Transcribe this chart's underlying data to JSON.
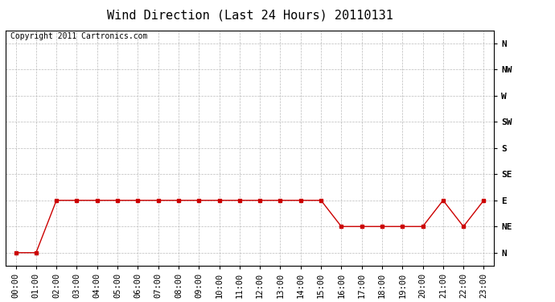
{
  "title": "Wind Direction (Last 24 Hours) 20110131",
  "copyright_text": "Copyright 2011 Cartronics.com",
  "x_labels": [
    "00:00",
    "01:00",
    "02:00",
    "03:00",
    "04:00",
    "05:00",
    "06:00",
    "07:00",
    "08:00",
    "09:00",
    "10:00",
    "11:00",
    "12:00",
    "13:00",
    "14:00",
    "15:00",
    "16:00",
    "17:00",
    "18:00",
    "19:00",
    "20:00",
    "21:00",
    "22:00",
    "23:00"
  ],
  "x_values": [
    0,
    1,
    2,
    3,
    4,
    5,
    6,
    7,
    8,
    9,
    10,
    11,
    12,
    13,
    14,
    15,
    16,
    17,
    18,
    19,
    20,
    21,
    22,
    23
  ],
  "y_direction_labels": [
    "N",
    "NE",
    "E",
    "SE",
    "S",
    "SW",
    "W",
    "NW",
    "N"
  ],
  "y_ticks": [
    0,
    1,
    2,
    3,
    4,
    5,
    6,
    7,
    8
  ],
  "y_values": [
    0,
    0,
    2,
    2,
    2,
    2,
    2,
    2,
    2,
    2,
    2,
    2,
    2,
    2,
    2,
    2,
    1,
    1,
    1,
    1,
    1,
    2,
    1,
    2
  ],
  "line_color": "#cc0000",
  "marker": "s",
  "marker_size": 3,
  "background_color": "#ffffff",
  "grid_color": "#bbbbbb",
  "title_fontsize": 11,
  "axis_label_fontsize": 7.5,
  "copyright_fontsize": 7
}
